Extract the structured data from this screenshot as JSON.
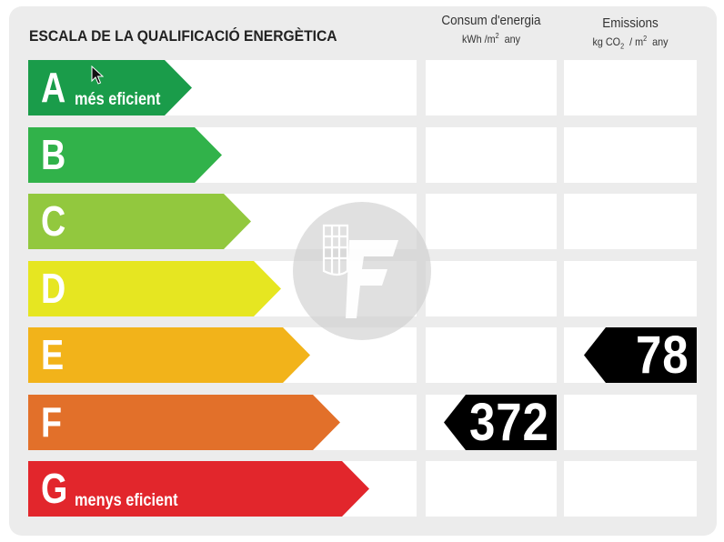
{
  "title": "ESCALA DE LA QUALIFICACIÓ ENERGÈTICA",
  "columns": {
    "energy": {
      "label": "Consum d'energia",
      "unit_prefix": "kWh /m",
      "unit_exp": "2",
      "unit_suffix": "any"
    },
    "emissions": {
      "label": "Emissions",
      "unit_prefix": "kg CO",
      "unit_sub": "2",
      "unit_mid": "/ m",
      "unit_exp": "2",
      "unit_suffix": "any"
    }
  },
  "bands": [
    {
      "letter": "A",
      "note": "més eficient",
      "color": "#1a9c4a"
    },
    {
      "letter": "B",
      "note": "",
      "color": "#31b24a"
    },
    {
      "letter": "C",
      "note": "",
      "color": "#92c83e"
    },
    {
      "letter": "D",
      "note": "",
      "color": "#e6e621"
    },
    {
      "letter": "E",
      "note": "",
      "color": "#f2b31a"
    },
    {
      "letter": "F",
      "note": "",
      "color": "#e2702a"
    },
    {
      "letter": "G",
      "note": "menys eficient",
      "color": "#e2262c"
    }
  ],
  "rating": {
    "energy": {
      "band": "F",
      "value": "372"
    },
    "emissions": {
      "band": "E",
      "value": "78"
    }
  },
  "watermark": {
    "icon": "logo-watermark-icon"
  },
  "cursor": {
    "icon": "mouse-pointer-icon"
  }
}
